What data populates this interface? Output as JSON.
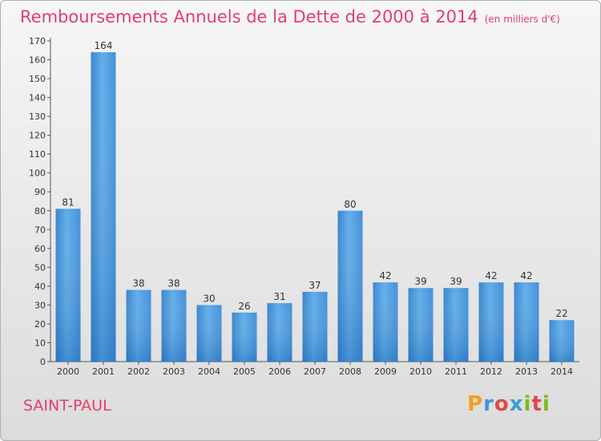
{
  "chart_data": {
    "type": "bar",
    "title": "Remboursements Annuels de la Dette de 2000 à 2014",
    "subtitle": "(en milliers d'€)",
    "categories": [
      "2000",
      "2001",
      "2002",
      "2003",
      "2004",
      "2005",
      "2006",
      "2007",
      "2008",
      "2009",
      "2010",
      "2011",
      "2012",
      "2013",
      "2014"
    ],
    "values": [
      81,
      164,
      38,
      38,
      30,
      26,
      31,
      37,
      80,
      42,
      39,
      39,
      42,
      42,
      22
    ],
    "ylim": [
      0,
      170
    ],
    "yticks": [
      0,
      10,
      20,
      30,
      40,
      50,
      60,
      70,
      80,
      90,
      100,
      110,
      120,
      130,
      140,
      150,
      160,
      170
    ],
    "grid": false,
    "bar_color": "#3f8fd8"
  },
  "footer": {
    "city": "SAINT-PAUL",
    "logo_letters": [
      "P",
      "r",
      "o",
      "x",
      "i",
      "t",
      "i"
    ],
    "logo_colors": [
      "#f0a020",
      "#3a9ad9",
      "#e04848",
      "#3a9ad9",
      "#80b820",
      "#e04848",
      "#80b820"
    ]
  }
}
